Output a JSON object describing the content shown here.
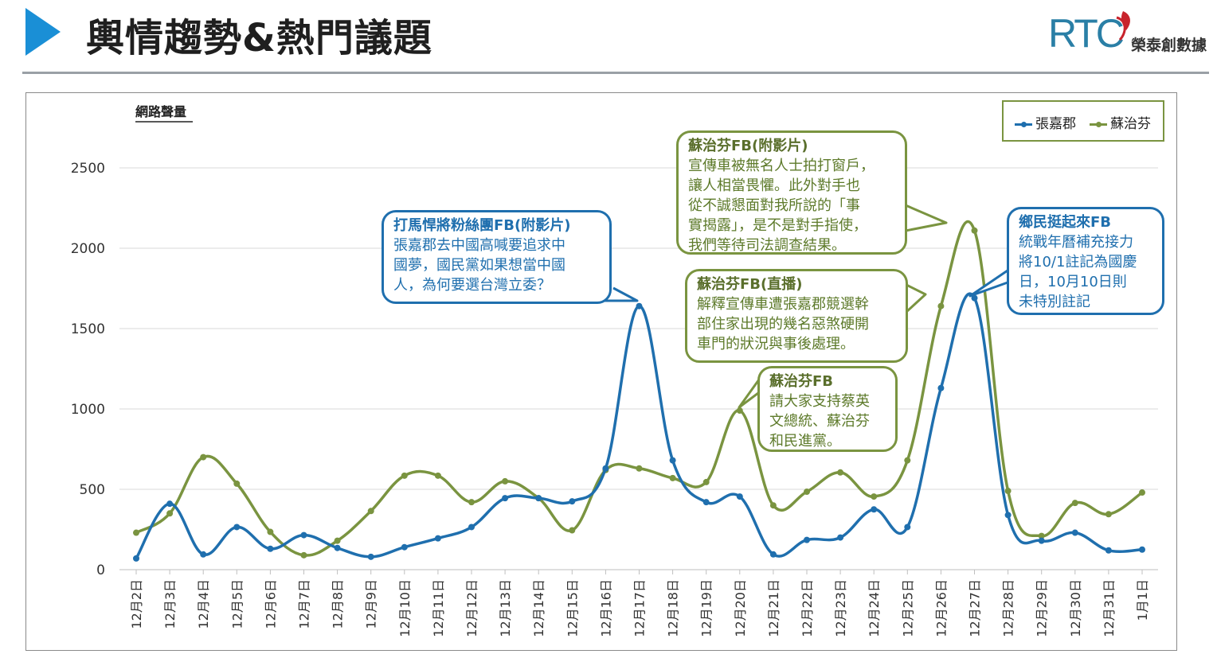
{
  "header": {
    "title": "輿情趨勢&熱門議題",
    "logo_mark": "RTC",
    "logo_name": "榮泰創數據"
  },
  "colors": {
    "blue": "#1f6fae",
    "green": "#7a9440",
    "accent": "#1a8fd6"
  },
  "icons": [
    "play-arrow-icon",
    "rtc-logo-icon"
  ],
  "callouts": [
    {
      "title": "打馬悍將粉絲團FB(附影片)",
      "lines": [
        "張嘉郡去中國高喊要追求中",
        "國夢，國民黨如果想當中國",
        "人，為何要選台灣立委？"
      ]
    },
    {
      "title": "蘇治芬FB(附影片)",
      "lines": [
        "宣傳車被無名人士拍打窗戶，",
        "讓人相當畏懼。此外對手也",
        "從不誠懇面對我所說的「事",
        "實揭露」，是不是對手指使，",
        "我們等待司法調查結果。"
      ]
    },
    {
      "title": "蘇治芬FB(直播)",
      "lines": [
        "解釋宣傳車遭張嘉郡競選幹",
        "部住家出現的幾名惡煞硬開",
        "車門的狀況與事後處理。"
      ]
    },
    {
      "title": "蘇治芬FB",
      "lines": [
        "請大家支持蔡英",
        "文總統、蘇治芬",
        "和民進黨。"
      ]
    },
    {
      "title": "鄉民挺起來FB",
      "lines": [
        "統戰年曆補充接力",
        "將10/1註記為國慶",
        "日，10月10日則",
        "未特別註記"
      ]
    }
  ],
  "chart_data": {
    "type": "line",
    "title": "",
    "ylabel": "網路聲量",
    "xlabel": "",
    "ylim": [
      0,
      2500
    ],
    "yticks": [
      0,
      500,
      1000,
      1500,
      2000,
      2500
    ],
    "grid": true,
    "legend_position": "top-right",
    "categories": [
      "12月2日",
      "12月3日",
      "12月4日",
      "12月5日",
      "12月6日",
      "12月7日",
      "12月8日",
      "12月9日",
      "12月10日",
      "12月11日",
      "12月12日",
      "12月13日",
      "12月14日",
      "12月15日",
      "12月16日",
      "12月17日",
      "12月18日",
      "12月19日",
      "12月20日",
      "12月21日",
      "12月22日",
      "12月23日",
      "12月24日",
      "12月25日",
      "12月26日",
      "12月27日",
      "12月28日",
      "12月29日",
      "12月30日",
      "12月31日",
      "1月1日"
    ],
    "series": [
      {
        "name": "張嘉郡",
        "color": "#1f6fae",
        "values": [
          70,
          410,
          95,
          265,
          130,
          215,
          135,
          80,
          140,
          195,
          265,
          445,
          445,
          425,
          630,
          1640,
          680,
          420,
          455,
          95,
          185,
          200,
          375,
          265,
          1130,
          1690,
          340,
          180,
          230,
          120,
          125
        ]
      },
      {
        "name": "蘇治芬",
        "color": "#7a9440",
        "values": [
          230,
          350,
          700,
          535,
          235,
          90,
          180,
          365,
          585,
          585,
          420,
          550,
          445,
          245,
          620,
          630,
          570,
          545,
          990,
          400,
          485,
          605,
          455,
          680,
          1640,
          2110,
          490,
          210,
          415,
          345,
          480
        ]
      }
    ]
  }
}
